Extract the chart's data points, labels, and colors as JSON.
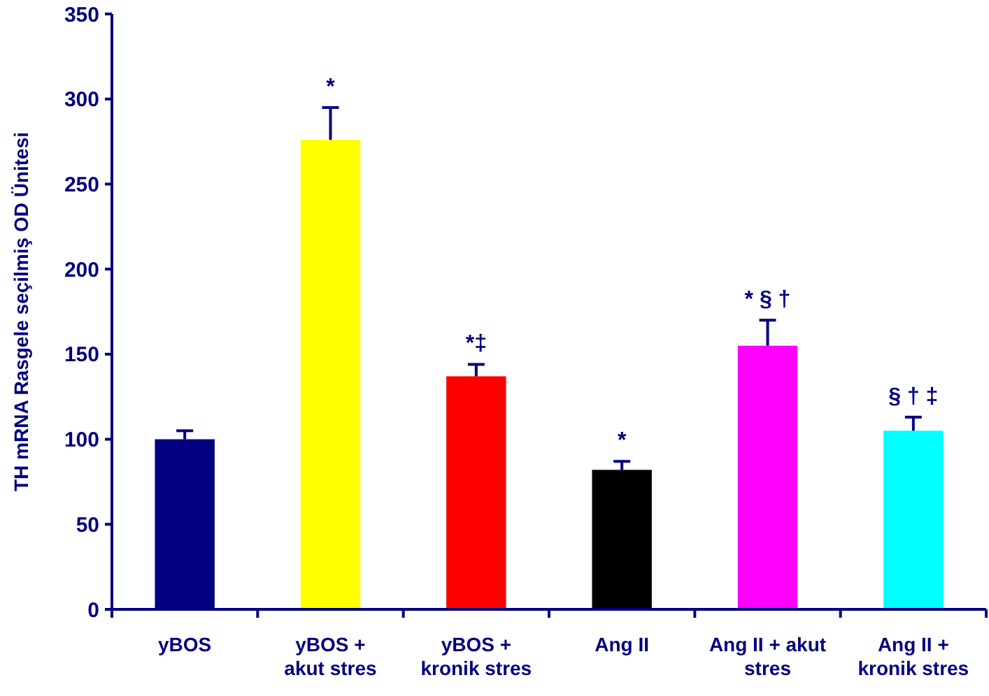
{
  "chart_data": {
    "type": "bar",
    "ylabel": "TH mRNA Rasgele seçilmiş OD Ünitesi",
    "categories": [
      "yBOS",
      "yBOS +\nakut stres",
      "yBOS +\nkronik stres",
      "Ang II",
      "Ang II + akut\nstres",
      "Ang II +\nkronik stres"
    ],
    "values": [
      100,
      276,
      137,
      82,
      155,
      105
    ],
    "colors": [
      "#000080",
      "#ffff00",
      "#ff0000",
      "#000000",
      "#ff00ff",
      "#00ffff"
    ],
    "errors": [
      [
        100,
        105
      ],
      [
        276,
        295
      ],
      [
        137,
        144
      ],
      [
        82,
        87
      ],
      [
        155,
        170
      ],
      [
        105,
        113
      ]
    ],
    "ylim": [
      0,
      350
    ],
    "yticks": [
      0,
      50,
      100,
      150,
      200,
      250,
      300,
      350
    ],
    "grid": false,
    "annotations": [
      {
        "text": "*",
        "x": "yBOS +\nakut stres",
        "y": 276
      },
      {
        "text": "*‡",
        "x": "yBOS +\nkronik stres",
        "y": 137
      },
      {
        "text": "*",
        "x": "Ang II",
        "y": 82
      },
      {
        "text": "* § †",
        "x": "Ang II + akut\nstres",
        "y": 155
      },
      {
        "text": "§ † ‡",
        "x": "Ang II +\nkronik stres",
        "y": 105
      }
    ]
  }
}
